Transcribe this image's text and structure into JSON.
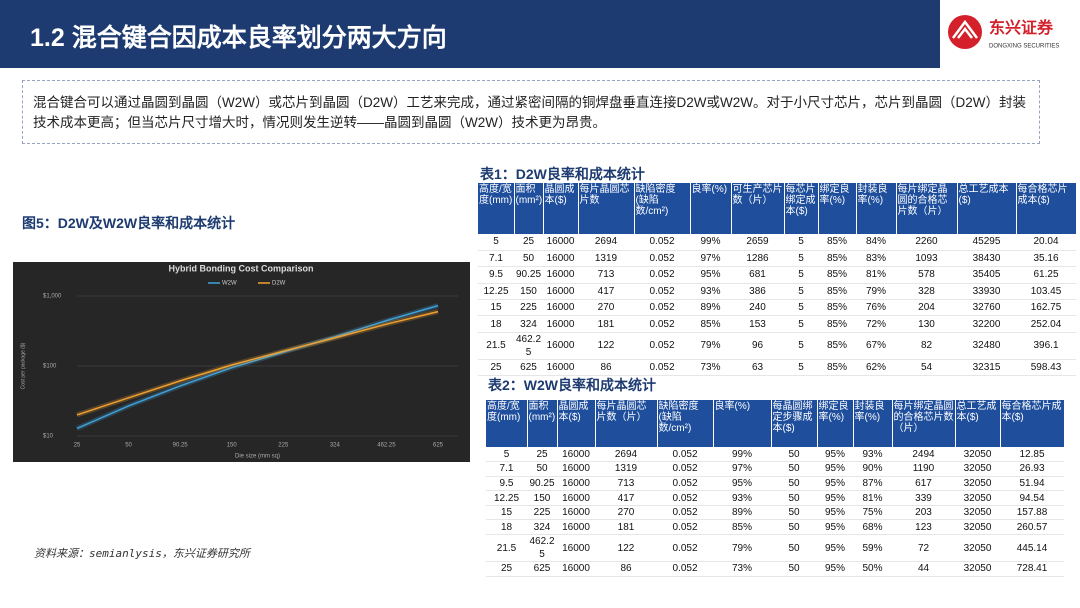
{
  "header": {
    "title": "1.2 混合键合因成本良率划分两大方向",
    "logo_name": "东兴证券",
    "logo_sub": "DONGXING SECURITIES"
  },
  "intro": "混合键合可以通过晶圆到晶圆（W2W）或芯片到晶圆（D2W）工艺来完成，通过紧密间隔的铜焊盘垂直连接D2W或W2W。对于小尺寸芯片，芯片到晶圆（D2W）封装技术成本更高；但当芯片尺寸增大时，情况则发生逆转——晶圆到晶圆（W2W）技术更为昂贵。",
  "figure_title": "图5：D2W及W2W良率和成本统计",
  "source": "资料来源：semianlysis，东兴证券研究所",
  "chart_data": {
    "type": "line",
    "title": "Hybrid Bonding Cost Comparison",
    "x_label": "Die size (mm sq)",
    "y_label": "Cost per package ($)",
    "categories": [
      "25",
      "50",
      "90.25",
      "150",
      "225",
      "324",
      "462.25",
      "625"
    ],
    "series": [
      {
        "name": "W2W",
        "color": "#3fa0d8",
        "values": [
          12.85,
          26.93,
          51.94,
          94.54,
          157.88,
          260.57,
          445.14,
          728.41
        ]
      },
      {
        "name": "D2W",
        "color": "#f0a030",
        "values": [
          20.04,
          35.16,
          61.25,
          103.45,
          162.75,
          252.04,
          396.1,
          598.43
        ]
      }
    ],
    "log_scale": true,
    "ylim": [
      10,
      1000
    ],
    "yticks": [
      {
        "value": 10,
        "label": "$10"
      },
      {
        "value": 100,
        "label": "$100"
      },
      {
        "value": 1000,
        "label": "$1,000"
      }
    ],
    "legend": "top"
  },
  "table1": {
    "title": "表1：D2W良率和成本统计",
    "columns": [
      "高度/宽度(mm)",
      "面积(mm²)",
      "晶圆成本($)",
      "每片晶圆芯片数",
      "缺陷密度(缺陷数/cm²)",
      "良率(%)",
      "可生产芯片数（片）",
      "每芯片绑定成本($)",
      "绑定良率(%)",
      "封装良率(%)",
      "每片绑定晶圆的合格芯片数（片）",
      "总工艺成本($)",
      "每合格芯片成本($)"
    ],
    "rows": [
      [
        "5",
        "25",
        "16000",
        "2694",
        "0.052",
        "99%",
        "2659",
        "5",
        "85%",
        "84%",
        "2260",
        "45295",
        "20.04"
      ],
      [
        "7.1",
        "50",
        "16000",
        "1319",
        "0.052",
        "97%",
        "1286",
        "5",
        "85%",
        "83%",
        "1093",
        "38430",
        "35.16"
      ],
      [
        "9.5",
        "90.25",
        "16000",
        "713",
        "0.052",
        "95%",
        "681",
        "5",
        "85%",
        "81%",
        "578",
        "35405",
        "61.25"
      ],
      [
        "12.25",
        "150",
        "16000",
        "417",
        "0.052",
        "93%",
        "386",
        "5",
        "85%",
        "79%",
        "328",
        "33930",
        "103.45"
      ],
      [
        "15",
        "225",
        "16000",
        "270",
        "0.052",
        "89%",
        "240",
        "5",
        "85%",
        "76%",
        "204",
        "32760",
        "162.75"
      ],
      [
        "18",
        "324",
        "16000",
        "181",
        "0.052",
        "85%",
        "153",
        "5",
        "85%",
        "72%",
        "130",
        "32200",
        "252.04"
      ],
      [
        "21.5",
        "462.25",
        "16000",
        "122",
        "0.052",
        "79%",
        "96",
        "5",
        "85%",
        "67%",
        "82",
        "32480",
        "396.1"
      ],
      [
        "25",
        "625",
        "16000",
        "86",
        "0.052",
        "73%",
        "63",
        "5",
        "85%",
        "62%",
        "54",
        "32315",
        "598.43"
      ]
    ]
  },
  "table2": {
    "title": "表2：W2W良率和成本统计",
    "columns": [
      "高度/宽度(mm)",
      "面积(mm²)",
      "晶圆成本($)",
      "每片晶圆芯片数（片）",
      "缺陷密度(缺陷数/cm²)",
      "良率(%)",
      "每晶圆绑定步骤成本($)",
      "绑定良率(%)",
      "封装良率(%)",
      "每片绑定晶圆的合格芯片数（片）",
      "总工艺成本($)",
      "每合格芯片成本($)"
    ],
    "rows": [
      [
        "5",
        "25",
        "16000",
        "2694",
        "0.052",
        "99%",
        "50",
        "95%",
        "93%",
        "2494",
        "32050",
        "12.85"
      ],
      [
        "7.1",
        "50",
        "16000",
        "1319",
        "0.052",
        "97%",
        "50",
        "95%",
        "90%",
        "1190",
        "32050",
        "26.93"
      ],
      [
        "9.5",
        "90.25",
        "16000",
        "713",
        "0.052",
        "95%",
        "50",
        "95%",
        "87%",
        "617",
        "32050",
        "51.94"
      ],
      [
        "12.25",
        "150",
        "16000",
        "417",
        "0.052",
        "93%",
        "50",
        "95%",
        "81%",
        "339",
        "32050",
        "94.54"
      ],
      [
        "15",
        "225",
        "16000",
        "270",
        "0.052",
        "89%",
        "50",
        "95%",
        "75%",
        "203",
        "32050",
        "157.88"
      ],
      [
        "18",
        "324",
        "16000",
        "181",
        "0.052",
        "85%",
        "50",
        "95%",
        "68%",
        "123",
        "32050",
        "260.57"
      ],
      [
        "21.5",
        "462.25",
        "16000",
        "122",
        "0.052",
        "79%",
        "50",
        "95%",
        "59%",
        "72",
        "32050",
        "445.14"
      ],
      [
        "25",
        "625",
        "16000",
        "86",
        "0.052",
        "73%",
        "50",
        "95%",
        "50%",
        "44",
        "32050",
        "728.41"
      ]
    ]
  }
}
